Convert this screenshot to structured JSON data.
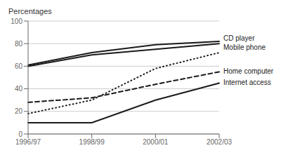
{
  "chart_data": {
    "type": "line",
    "y_label": "Percentages",
    "categories": [
      "1996/97",
      "1998/99",
      "2000/01",
      "2002/03"
    ],
    "series": [
      {
        "name": "CD player",
        "color": "#1a1a1a",
        "line_style": "solid",
        "values": [
          61,
          72,
          79,
          82
        ]
      },
      {
        "name": "Mobile phone",
        "color": "#1a1a1a",
        "line_style": "solid",
        "values": [
          60,
          70,
          75,
          80
        ]
      },
      {
        "color": "#1a1a1a",
        "line_style": "dotted",
        "values": [
          18,
          30,
          58,
          72
        ]
      },
      {
        "name": "Home computer",
        "color": "#1a1a1a",
        "line_style": "dashed",
        "values": [
          28,
          32,
          44,
          55
        ]
      },
      {
        "name": "Internet access",
        "color": "#1a1a1a",
        "line_style": "solid",
        "values": [
          10,
          10,
          30,
          45
        ]
      }
    ],
    "ylim": [
      0,
      100
    ],
    "yticks": [
      0,
      20,
      40,
      60,
      80,
      100
    ],
    "grid": true
  }
}
